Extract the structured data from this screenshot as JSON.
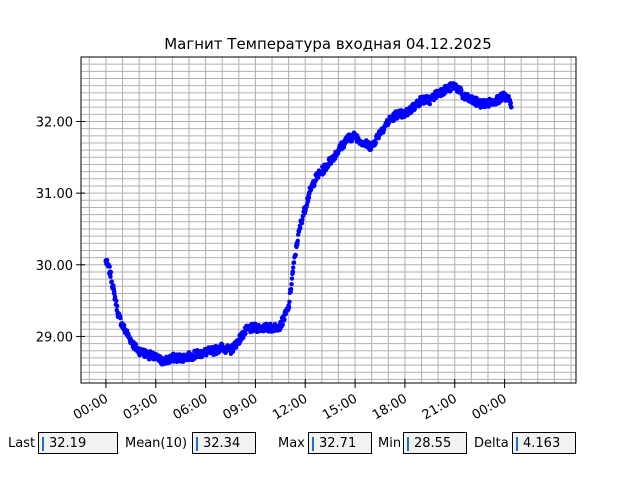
{
  "chart_data": {
    "type": "scatter",
    "title": "Магнит Температура входная 04.12.2025",
    "x_tick_labels": [
      "00:00",
      "03:00",
      "06:00",
      "09:00",
      "12:00",
      "15:00",
      "18:00",
      "21:00",
      "00:00"
    ],
    "y_tick_labels": [
      "29.00",
      "30.00",
      "31.00",
      "32.00"
    ],
    "yticks": [
      29,
      30,
      31,
      32
    ],
    "ylim": [
      28.35,
      32.9
    ],
    "xlim_hours": [
      -1.5,
      28.3
    ],
    "grid": true,
    "marker_color": "#0000ff",
    "series": [
      {
        "x_hours": [
          0.0,
          0.25,
          0.5,
          0.75,
          1.0,
          1.25,
          1.5,
          1.75,
          2.0,
          2.5,
          3.0,
          3.5,
          4.0,
          4.5,
          5.0,
          5.5,
          6.0,
          6.5,
          7.0,
          7.5,
          8.0,
          8.5,
          9.0,
          9.5,
          10.0,
          10.5,
          11.0,
          11.25,
          11.5,
          11.75,
          12.0,
          12.25,
          12.5,
          12.75,
          13.0,
          13.5,
          14.0,
          14.5,
          15.0,
          15.5,
          16.0,
          16.5,
          17.0,
          17.5,
          18.0,
          18.5,
          19.0,
          19.5,
          20.0,
          20.5,
          21.0,
          21.25,
          21.5,
          22.0,
          22.5,
          23.0,
          23.5,
          24.0,
          24.25,
          24.4
        ],
        "y": [
          30.05,
          29.9,
          29.6,
          29.3,
          29.15,
          29.05,
          28.95,
          28.85,
          28.8,
          28.75,
          28.7,
          28.65,
          28.7,
          28.7,
          28.72,
          28.75,
          28.78,
          28.8,
          28.85,
          28.8,
          28.95,
          29.1,
          29.12,
          29.12,
          29.12,
          29.15,
          29.4,
          29.9,
          30.3,
          30.6,
          30.8,
          31.0,
          31.15,
          31.25,
          31.3,
          31.45,
          31.6,
          31.75,
          31.8,
          31.7,
          31.65,
          31.85,
          32.0,
          32.1,
          32.1,
          32.2,
          32.3,
          32.3,
          32.4,
          32.45,
          32.5,
          32.45,
          32.35,
          32.3,
          32.25,
          32.25,
          32.3,
          32.35,
          32.3,
          32.2
        ]
      }
    ]
  },
  "stats": {
    "last_label": "Last",
    "last_value": "32.19",
    "mean_label": "Mean(10)",
    "mean_value": "32.34",
    "max_label": "Max",
    "max_value": "32.71",
    "min_label": "Min",
    "min_value": "28.55",
    "delta_label": "Delta",
    "delta_value": "4.163"
  }
}
